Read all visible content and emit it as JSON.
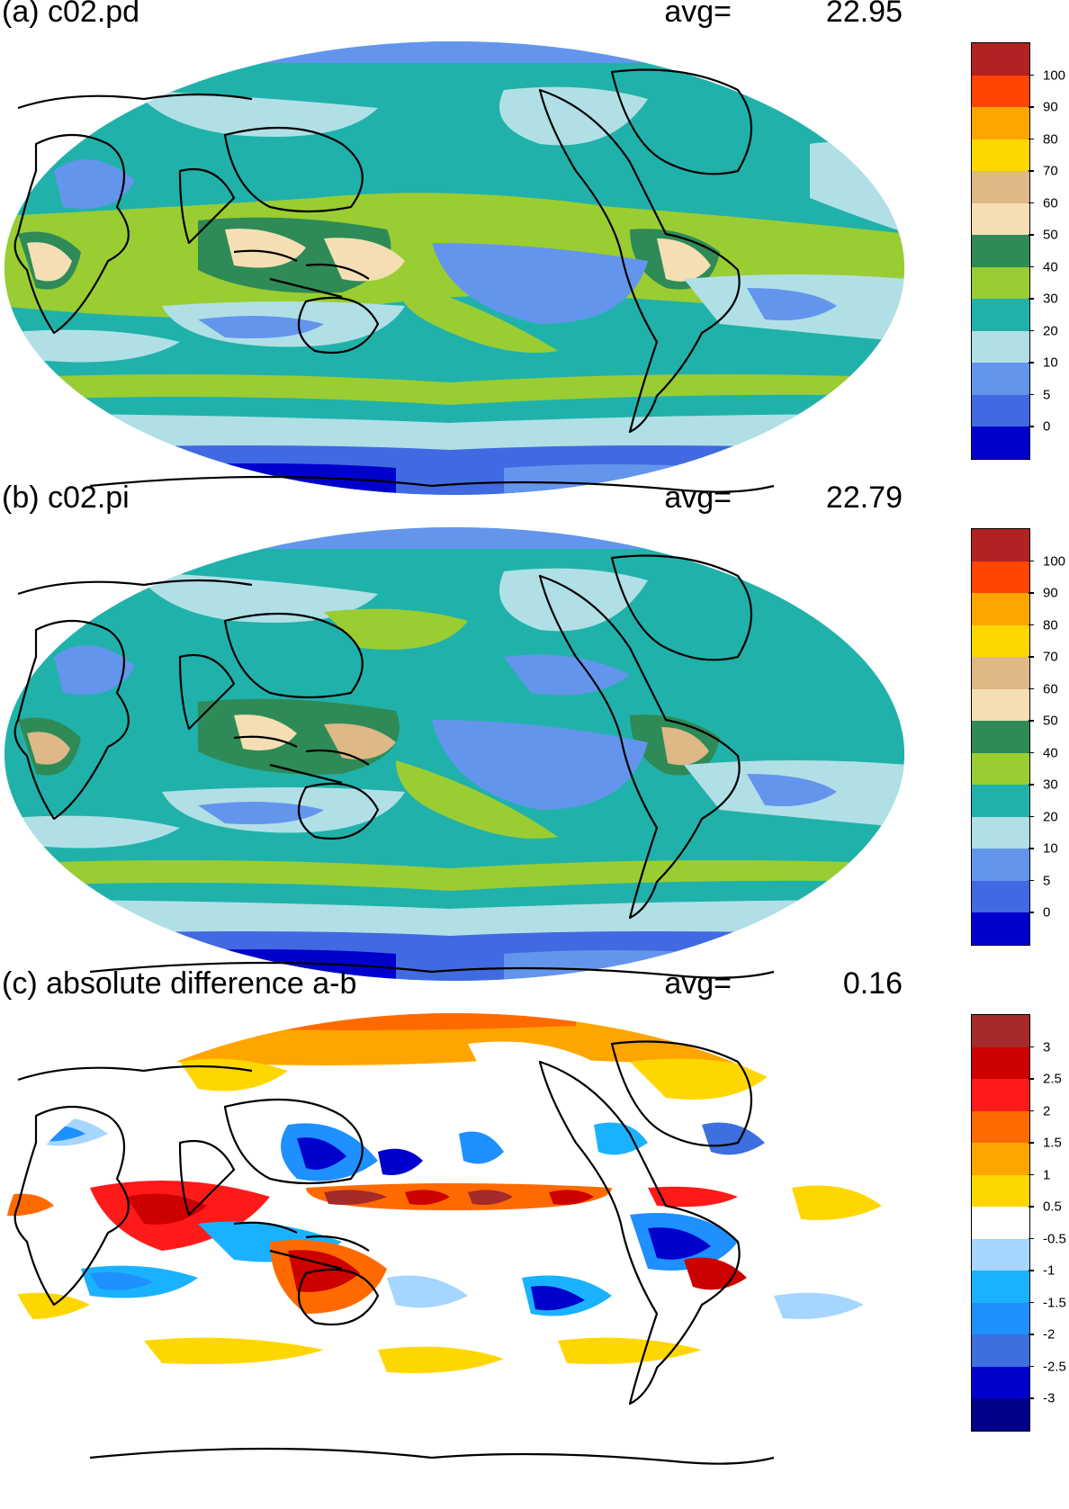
{
  "panels": [
    {
      "id": "a",
      "title": "(a) c02.pd",
      "avg_label": "avg=",
      "avg_value": "22.95",
      "colorbar": {
        "colors": [
          "#b22222",
          "#ff4500",
          "#ffa500",
          "#ffd700",
          "#deb887",
          "#f5deb3",
          "#2e8b57",
          "#9acd32",
          "#20b2aa",
          "#b0e0e6",
          "#6495ed",
          "#4169e1",
          "#0000cd"
        ],
        "ticks": [
          "100",
          "90",
          "80",
          "70",
          "60",
          "50",
          "40",
          "30",
          "20",
          "10",
          "5",
          "0"
        ]
      }
    },
    {
      "id": "b",
      "title": "(b) c02.pi",
      "avg_label": "avg=",
      "avg_value": "22.79",
      "colorbar": {
        "colors": [
          "#b22222",
          "#ff4500",
          "#ffa500",
          "#ffd700",
          "#deb887",
          "#f5deb3",
          "#2e8b57",
          "#9acd32",
          "#20b2aa",
          "#b0e0e6",
          "#6495ed",
          "#4169e1",
          "#0000cd"
        ],
        "ticks": [
          "100",
          "90",
          "80",
          "70",
          "60",
          "50",
          "40",
          "30",
          "20",
          "10",
          "5",
          "0"
        ]
      }
    },
    {
      "id": "c",
      "title": "(c) absolute difference a-b",
      "avg_label": "avg=",
      "avg_value": "0.16",
      "colorbar": {
        "colors": [
          "#a52a2a",
          "#cd0000",
          "#ff1a1a",
          "#ff6a00",
          "#ffa500",
          "#ffd700",
          "#ffffff",
          "#a6d5ff",
          "#1ab2ff",
          "#1e90ff",
          "#3d6fde",
          "#0000cd",
          "#00008b"
        ],
        "ticks": [
          "3",
          "2.5",
          "2",
          "1.5",
          "1",
          "0.5",
          "-0.5",
          "-1",
          "-1.5",
          "-2",
          "-2.5",
          "-3"
        ]
      }
    }
  ]
}
